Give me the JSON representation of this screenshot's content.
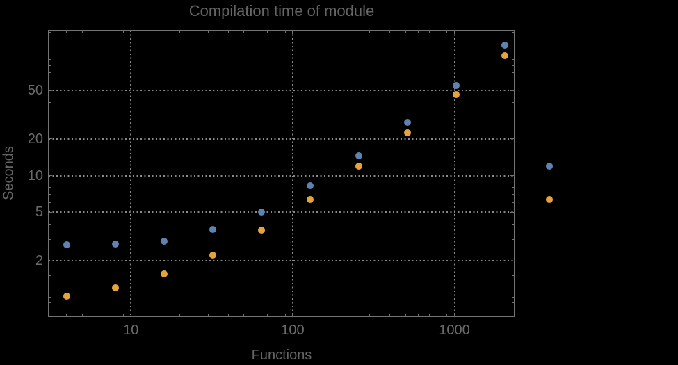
{
  "title": "Compilation time of module",
  "colors": {
    "background": "#000000",
    "text": "#646464",
    "frame": "#737373",
    "grid": "#8a8a8a",
    "series1": "#5f82b4",
    "series2": "#e6a33c"
  },
  "chart_data": {
    "type": "scatter",
    "title": "Compilation time of module",
    "xlabel": "Functions",
    "ylabel": "Seconds",
    "x_scale": "log",
    "y_scale": "log",
    "xlim": [
      3.1,
      2330
    ],
    "ylim": [
      0.7,
      155
    ],
    "grid": "dotted",
    "x": [
      4,
      8,
      16,
      32,
      64,
      128,
      256,
      512,
      1024,
      2048
    ],
    "series": [
      {
        "name": "series-1",
        "color": "#5f82b4",
        "values": [
          2.72,
          2.76,
          2.9,
          3.63,
          5.03,
          8.27,
          14.5,
          27.2,
          55,
          118
        ]
      },
      {
        "name": "series-2",
        "color": "#e6a33c",
        "values": [
          1.02,
          1.2,
          1.55,
          2.21,
          3.58,
          6.37,
          11.9,
          22.6,
          46.5,
          97
        ]
      }
    ],
    "x_ticks": [
      10,
      100,
      1000
    ],
    "x_tick_labels": [
      "10",
      "100",
      "1000"
    ],
    "x_minor_ticks": [
      4,
      5,
      6,
      7,
      8,
      9,
      20,
      30,
      40,
      50,
      60,
      70,
      80,
      90,
      200,
      300,
      400,
      500,
      600,
      700,
      800,
      900,
      2000
    ],
    "y_ticks": [
      2,
      5,
      10,
      20,
      50
    ],
    "y_tick_labels": [
      "2",
      "5",
      "10",
      "20",
      "50"
    ],
    "y_minor_ticks": [
      0.8,
      0.9,
      1,
      1.5,
      3,
      4,
      6,
      7,
      8,
      9,
      15,
      30,
      40,
      60,
      70,
      80,
      90,
      100,
      150
    ],
    "legend": {
      "position": "right-outside",
      "entries": [
        {
          "series": "series-1",
          "color": "#5f82b4"
        },
        {
          "series": "series-2",
          "color": "#e6a33c"
        }
      ]
    }
  }
}
